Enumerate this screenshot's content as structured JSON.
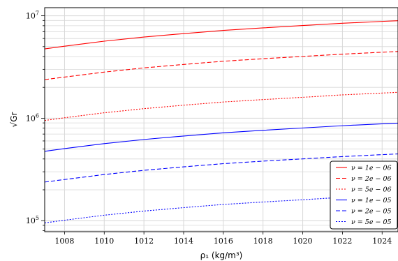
{
  "chart_data": {
    "type": "line",
    "xlabel": "ρ₁ (kg/m³)",
    "ylabel": "√Gr",
    "yscale": "log",
    "xlim": [
      1007,
      1024.8
    ],
    "ylim": [
      78000,
      12000000
    ],
    "xticks": [
      1008,
      1010,
      1012,
      1014,
      1016,
      1018,
      1020,
      1022,
      1024
    ],
    "xtick_labels": [
      "1008",
      "1010",
      "1012",
      "1014",
      "1016",
      "1018",
      "1020",
      "1022",
      "1024"
    ],
    "yticks": [
      {
        "value": 100000,
        "base": "10",
        "exp": "5"
      },
      {
        "value": 1000000,
        "base": "10",
        "exp": "6"
      },
      {
        "value": 10000000,
        "base": "10",
        "exp": "7"
      }
    ],
    "grid": true,
    "legend_position": "lower-right",
    "x": [
      1007,
      1008,
      1010,
      1012,
      1014,
      1016,
      1018,
      1020,
      1022,
      1024,
      1024.8
    ],
    "series": [
      {
        "name": "ν = 1e − 06",
        "color": "#ff0000",
        "dash": "solid",
        "values": [
          4750000,
          5050000,
          5650000,
          6200000,
          6700000,
          7200000,
          7620000,
          8030000,
          8450000,
          8820000,
          8950000
        ]
      },
      {
        "name": "ν = 2e − 06",
        "color": "#ff0000",
        "dash": "dashed",
        "values": [
          2380000,
          2520000,
          2820000,
          3100000,
          3350000,
          3600000,
          3810000,
          4010000,
          4220000,
          4410000,
          4480000
        ]
      },
      {
        "name": "ν = 5e − 06",
        "color": "#ff0000",
        "dash": "dotted",
        "values": [
          950000,
          1010000,
          1130000,
          1240000,
          1340000,
          1440000,
          1520000,
          1600000,
          1690000,
          1760000,
          1790000
        ]
      },
      {
        "name": "ν = 1e − 05",
        "color": "#0000ff",
        "dash": "solid",
        "values": [
          475000,
          505000,
          565000,
          620000,
          670000,
          720000,
          762000,
          803000,
          845000,
          882000,
          895000
        ]
      },
      {
        "name": "ν = 2e − 05",
        "color": "#0000ff",
        "dash": "dashed",
        "values": [
          238000,
          252000,
          282000,
          310000,
          335000,
          360000,
          381000,
          401000,
          422000,
          441000,
          448000
        ]
      },
      {
        "name": "ν = 5e − 05",
        "color": "#0000ff",
        "dash": "dotted",
        "values": [
          95000,
          101000,
          113000,
          124000,
          134000,
          144000,
          152000,
          160000,
          169000,
          176000,
          179000
        ]
      }
    ]
  }
}
